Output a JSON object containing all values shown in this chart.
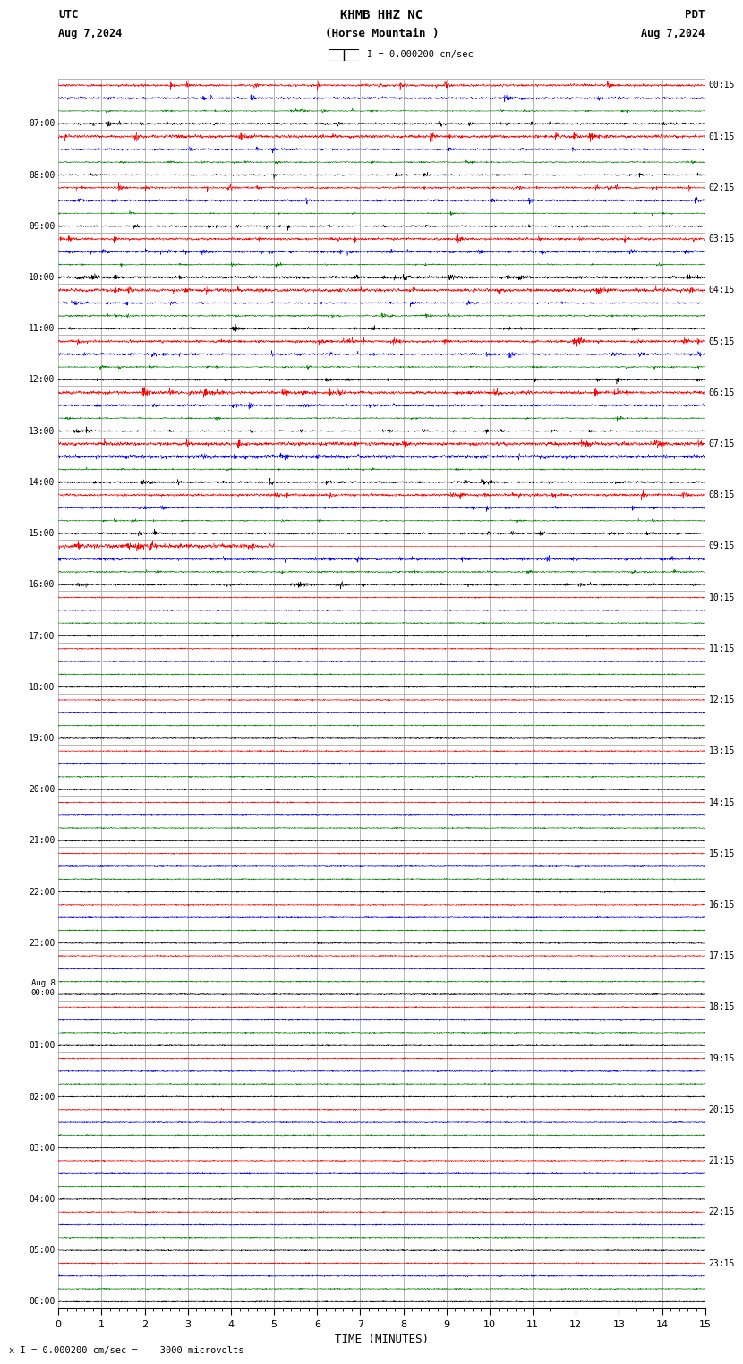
{
  "title_line1": "KHMB HHZ NC",
  "title_line2": "(Horse Mountain )",
  "scale_label": "I = 0.000200 cm/sec",
  "utc_label": "UTC",
  "pdt_label": "PDT",
  "date_left": "Aug 7,2024",
  "date_right": "Aug 7,2024",
  "footer": "x I = 0.000200 cm/sec =    3000 microvolts",
  "xlabel": "TIME (MINUTES)",
  "utc_times": [
    "07:00",
    "08:00",
    "09:00",
    "10:00",
    "11:00",
    "12:00",
    "13:00",
    "14:00",
    "15:00",
    "16:00",
    "17:00",
    "18:00",
    "19:00",
    "20:00",
    "21:00",
    "22:00",
    "23:00",
    "Aug 8\n00:00",
    "01:00",
    "02:00",
    "03:00",
    "04:00",
    "05:00",
    "06:00"
  ],
  "pdt_times": [
    "00:15",
    "01:15",
    "02:15",
    "03:15",
    "04:15",
    "05:15",
    "06:15",
    "07:15",
    "08:15",
    "09:15",
    "10:15",
    "11:15",
    "12:15",
    "13:15",
    "14:15",
    "15:15",
    "16:15",
    "17:15",
    "18:15",
    "19:15",
    "20:15",
    "21:15",
    "22:15",
    "23:15"
  ],
  "n_rows": 24,
  "n_active_rows": 10,
  "colors_order": [
    "red",
    "blue",
    "green",
    "black"
  ],
  "bg_color": "white",
  "grid_color": "#999999",
  "xmin": 0,
  "xmax": 15,
  "fig_width": 8.5,
  "fig_height": 15.84
}
